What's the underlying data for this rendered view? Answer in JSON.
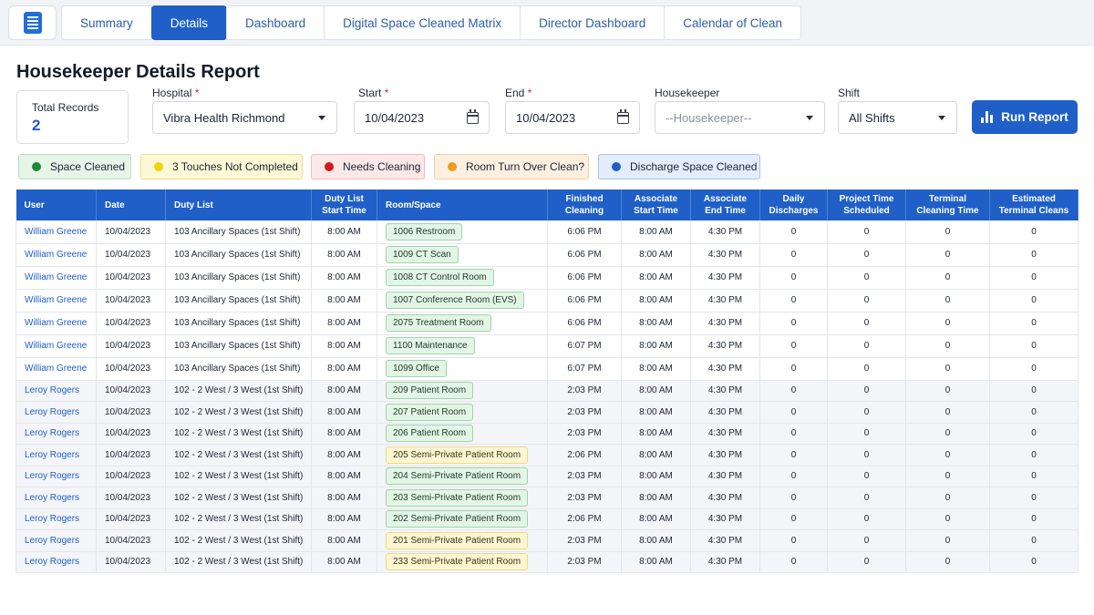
{
  "nav": {
    "logo_icon": "report-document-icon",
    "tabs": [
      {
        "label": "Summary",
        "active": false
      },
      {
        "label": "Details",
        "active": true
      },
      {
        "label": "Dashboard",
        "active": false
      },
      {
        "label": "Digital Space Cleaned Matrix",
        "active": false
      },
      {
        "label": "Director Dashboard",
        "active": false
      },
      {
        "label": "Calendar of Clean",
        "active": false
      }
    ]
  },
  "page": {
    "title": "Housekeeper Details Report"
  },
  "records": {
    "label": "Total Records",
    "value": "2"
  },
  "filters": {
    "hospital": {
      "label": "Hospital",
      "required": "*",
      "value": "Vibra Health Richmond"
    },
    "start": {
      "label": "Start",
      "required": "*",
      "value": "10/04/2023"
    },
    "end": {
      "label": "End",
      "required": "*",
      "value": "10/04/2023"
    },
    "housekeeper": {
      "label": "Housekeeper",
      "value": "--Housekeeper--"
    },
    "shift": {
      "label": "Shift",
      "value": "All Shifts"
    }
  },
  "run_button": {
    "label": "Run Report",
    "icon": "bar-chart-icon"
  },
  "legend": [
    {
      "label": "Space Cleaned",
      "dot": "#1e8a2e",
      "bg": "#e6f5e8",
      "border": "#b7dfbd"
    },
    {
      "label": "3 Touches Not Completed",
      "dot": "#f2d40c",
      "bg": "#fdf8d6",
      "border": "#ecde94"
    },
    {
      "label": "Needs Cleaning",
      "dot": "#d8161b",
      "bg": "#fde8e8",
      "border": "#f0bcbc"
    },
    {
      "label": "Room Turn Over Clean?",
      "dot": "#f39a1e",
      "bg": "#fdf0e1",
      "border": "#f0cfa2"
    },
    {
      "label": "Discharge Space Cleaned",
      "dot": "#1f5fc7",
      "bg": "#e4edfb",
      "border": "#a9c3ec"
    }
  ],
  "table": {
    "headers": [
      "User",
      "Date",
      "Duty List",
      "Duty List Start Time",
      "Room/Space",
      "Finished Cleaning",
      "Associate Start Time",
      "Associate End Time",
      "Daily Discharges",
      "Project Time Scheduled",
      "Terminal Cleaning Time",
      "Estimated Terminal Cleans"
    ],
    "rows": [
      {
        "user": "William Greene",
        "date": "10/04/2023",
        "duty": "103 Ancillary Spaces (1st Shift)",
        "duty_start": "8:00 AM",
        "room": "1006 Restroom",
        "status": "green",
        "finished": "6:06 PM",
        "assoc_start": "8:00 AM",
        "assoc_end": "4:30 PM",
        "discharges": "0",
        "project_time": "0",
        "terminal_time": "0",
        "est_terminal": "0"
      },
      {
        "user": "William Greene",
        "date": "10/04/2023",
        "duty": "103 Ancillary Spaces (1st Shift)",
        "duty_start": "8:00 AM",
        "room": "1009 CT Scan",
        "status": "green",
        "finished": "6:06 PM",
        "assoc_start": "8:00 AM",
        "assoc_end": "4:30 PM",
        "discharges": "0",
        "project_time": "0",
        "terminal_time": "0",
        "est_terminal": "0"
      },
      {
        "user": "William Greene",
        "date": "10/04/2023",
        "duty": "103 Ancillary Spaces (1st Shift)",
        "duty_start": "8:00 AM",
        "room": "1008 CT Control Room",
        "status": "green",
        "finished": "6:06 PM",
        "assoc_start": "8:00 AM",
        "assoc_end": "4:30 PM",
        "discharges": "0",
        "project_time": "0",
        "terminal_time": "0",
        "est_terminal": "0"
      },
      {
        "user": "William Greene",
        "date": "10/04/2023",
        "duty": "103 Ancillary Spaces (1st Shift)",
        "duty_start": "8:00 AM",
        "room": "1007 Conference Room (EVS)",
        "status": "green",
        "finished": "6:06 PM",
        "assoc_start": "8:00 AM",
        "assoc_end": "4:30 PM",
        "discharges": "0",
        "project_time": "0",
        "terminal_time": "0",
        "est_terminal": "0"
      },
      {
        "user": "William Greene",
        "date": "10/04/2023",
        "duty": "103 Ancillary Spaces (1st Shift)",
        "duty_start": "8:00 AM",
        "room": "2075 Treatment Room",
        "status": "green",
        "finished": "6:06 PM",
        "assoc_start": "8:00 AM",
        "assoc_end": "4:30 PM",
        "discharges": "0",
        "project_time": "0",
        "terminal_time": "0",
        "est_terminal": "0"
      },
      {
        "user": "William Greene",
        "date": "10/04/2023",
        "duty": "103 Ancillary Spaces (1st Shift)",
        "duty_start": "8:00 AM",
        "room": "1100 Maintenance",
        "status": "green",
        "finished": "6:07 PM",
        "assoc_start": "8:00 AM",
        "assoc_end": "4:30 PM",
        "discharges": "0",
        "project_time": "0",
        "terminal_time": "0",
        "est_terminal": "0"
      },
      {
        "user": "William Greene",
        "date": "10/04/2023",
        "duty": "103 Ancillary Spaces (1st Shift)",
        "duty_start": "8:00 AM",
        "room": "1099 Office",
        "status": "green",
        "finished": "6:07 PM",
        "assoc_start": "8:00 AM",
        "assoc_end": "4:30 PM",
        "discharges": "0",
        "project_time": "0",
        "terminal_time": "0",
        "est_terminal": "0"
      },
      {
        "user": "Leroy Rogers",
        "date": "10/04/2023",
        "duty": "102 - 2 West / 3 West (1st Shift)",
        "duty_start": "8:00 AM",
        "room": "209 Patient Room",
        "status": "green",
        "finished": "2:03 PM",
        "assoc_start": "8:00 AM",
        "assoc_end": "4:30 PM",
        "discharges": "0",
        "project_time": "0",
        "terminal_time": "0",
        "est_terminal": "0"
      },
      {
        "user": "Leroy Rogers",
        "date": "10/04/2023",
        "duty": "102 - 2 West / 3 West (1st Shift)",
        "duty_start": "8:00 AM",
        "room": "207 Patient Room",
        "status": "green",
        "finished": "2:03 PM",
        "assoc_start": "8:00 AM",
        "assoc_end": "4:30 PM",
        "discharges": "0",
        "project_time": "0",
        "terminal_time": "0",
        "est_terminal": "0"
      },
      {
        "user": "Leroy Rogers",
        "date": "10/04/2023",
        "duty": "102 - 2 West / 3 West (1st Shift)",
        "duty_start": "8:00 AM",
        "room": "206 Patient Room",
        "status": "green",
        "finished": "2:03 PM",
        "assoc_start": "8:00 AM",
        "assoc_end": "4:30 PM",
        "discharges": "0",
        "project_time": "0",
        "terminal_time": "0",
        "est_terminal": "0"
      },
      {
        "user": "Leroy Rogers",
        "date": "10/04/2023",
        "duty": "102 - 2 West / 3 West (1st Shift)",
        "duty_start": "8:00 AM",
        "room": "205 Semi-Private Patient Room",
        "status": "yellow",
        "finished": "2:06 PM",
        "assoc_start": "8:00 AM",
        "assoc_end": "4:30 PM",
        "discharges": "0",
        "project_time": "0",
        "terminal_time": "0",
        "est_terminal": "0"
      },
      {
        "user": "Leroy Rogers",
        "date": "10/04/2023",
        "duty": "102 - 2 West / 3 West (1st Shift)",
        "duty_start": "8:00 AM",
        "room": "204 Semi-Private Patient Room",
        "status": "green",
        "finished": "2:03 PM",
        "assoc_start": "8:00 AM",
        "assoc_end": "4:30 PM",
        "discharges": "0",
        "project_time": "0",
        "terminal_time": "0",
        "est_terminal": "0"
      },
      {
        "user": "Leroy Rogers",
        "date": "10/04/2023",
        "duty": "102 - 2 West / 3 West (1st Shift)",
        "duty_start": "8:00 AM",
        "room": "203 Semi-Private Patient Room",
        "status": "green",
        "finished": "2:03 PM",
        "assoc_start": "8:00 AM",
        "assoc_end": "4:30 PM",
        "discharges": "0",
        "project_time": "0",
        "terminal_time": "0",
        "est_terminal": "0"
      },
      {
        "user": "Leroy Rogers",
        "date": "10/04/2023",
        "duty": "102 - 2 West / 3 West (1st Shift)",
        "duty_start": "8:00 AM",
        "room": "202 Semi-Private Patient Room",
        "status": "green",
        "finished": "2:06 PM",
        "assoc_start": "8:00 AM",
        "assoc_end": "4:30 PM",
        "discharges": "0",
        "project_time": "0",
        "terminal_time": "0",
        "est_terminal": "0"
      },
      {
        "user": "Leroy Rogers",
        "date": "10/04/2023",
        "duty": "102 - 2 West / 3 West (1st Shift)",
        "duty_start": "8:00 AM",
        "room": "201 Semi-Private Patient Room",
        "status": "yellow",
        "finished": "2:03 PM",
        "assoc_start": "8:00 AM",
        "assoc_end": "4:30 PM",
        "discharges": "0",
        "project_time": "0",
        "terminal_time": "0",
        "est_terminal": "0"
      },
      {
        "user": "Leroy Rogers",
        "date": "10/04/2023",
        "duty": "102 - 2 West / 3 West (1st Shift)",
        "duty_start": "8:00 AM",
        "room": "233 Semi-Private Patient Room",
        "status": "yellow",
        "finished": "2:03 PM",
        "assoc_start": "8:00 AM",
        "assoc_end": "4:30 PM",
        "discharges": "0",
        "project_time": "0",
        "terminal_time": "0",
        "est_terminal": "0"
      }
    ]
  }
}
